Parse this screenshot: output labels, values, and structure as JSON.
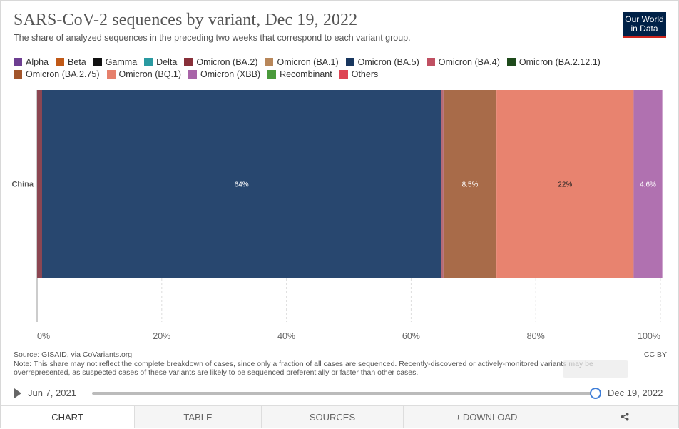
{
  "header": {
    "title": "SARS-CoV-2 sequences by variant, Dec 19, 2022",
    "subtitle": "The share of analyzed sequences in the preceding two weeks that correspond to each variant group.",
    "logo_line1": "Our World",
    "logo_line2": "in Data"
  },
  "legend": [
    {
      "label": "Alpha",
      "color": "#6d3e91"
    },
    {
      "label": "Beta",
      "color": "#c05917"
    },
    {
      "label": "Gamma",
      "color": "#111111"
    },
    {
      "label": "Delta",
      "color": "#2a9aa1"
    },
    {
      "label": "Omicron (BA.2)",
      "color": "#883039"
    },
    {
      "label": "Omicron (BA.1)",
      "color": "#b8875a"
    },
    {
      "label": "Omicron (BA.5)",
      "color": "#18365e"
    },
    {
      "label": "Omicron (BA.4)",
      "color": "#c05062"
    },
    {
      "label": "Omicron (BA.2.12.1)",
      "color": "#1e4a1b"
    },
    {
      "label": "Omicron (BA.2.75)",
      "color": "#a2552b"
    },
    {
      "label": "Omicron (BQ.1)",
      "color": "#e6806c"
    },
    {
      "label": "Omicron (XBB)",
      "color": "#a864a8"
    },
    {
      "label": "Recombinant",
      "color": "#4a9a3b"
    },
    {
      "label": "Others",
      "color": "#de4453"
    }
  ],
  "chart_data": {
    "type": "bar",
    "orientation": "horizontal",
    "stacked": true,
    "categories": [
      "China"
    ],
    "xlim": [
      0,
      100
    ],
    "x_ticks": [
      "0%",
      "20%",
      "40%",
      "60%",
      "80%",
      "100%"
    ],
    "x_tick_values": [
      0,
      20,
      40,
      60,
      80,
      100
    ],
    "grid": true,
    "series": [
      {
        "name": "Omicron (BA.2)",
        "values": [
          0.8
        ],
        "color": "#8c4652",
        "label": ""
      },
      {
        "name": "Omicron (BA.5)",
        "values": [
          64
        ],
        "color": "#28476f",
        "label": "64%"
      },
      {
        "name": "Omicron (BA.4)",
        "values": [
          0.4
        ],
        "color": "#b46a77",
        "label": ""
      },
      {
        "name": "Omicron (BA.2.75)",
        "values": [
          8.5
        ],
        "color": "#a86b49",
        "label": "8.5%"
      },
      {
        "name": "Omicron (BQ.1)",
        "values": [
          22
        ],
        "color": "#e8836f",
        "label": "22%"
      },
      {
        "name": "Omicron (XBB)",
        "values": [
          4.6
        ],
        "color": "#b071b0",
        "label": "4.6%"
      }
    ]
  },
  "footer": {
    "source": "Source: GISAID, via CoVariants.org",
    "note": "Note: This share may not reflect the complete breakdown of cases, since only a fraction of all cases are sequenced. Recently-discovered or actively-monitored variants may be overrepresented, as suspected cases of these variants are likely to be sequenced preferentially or faster than other cases.",
    "license": "CC BY"
  },
  "timeline": {
    "start_date": "Jun 7, 2021",
    "end_date": "Dec 19, 2022",
    "position": 1.0
  },
  "tabs": {
    "chart": "CHART",
    "table": "TABLE",
    "sources": "SOURCES",
    "download": "DOWNLOAD"
  }
}
